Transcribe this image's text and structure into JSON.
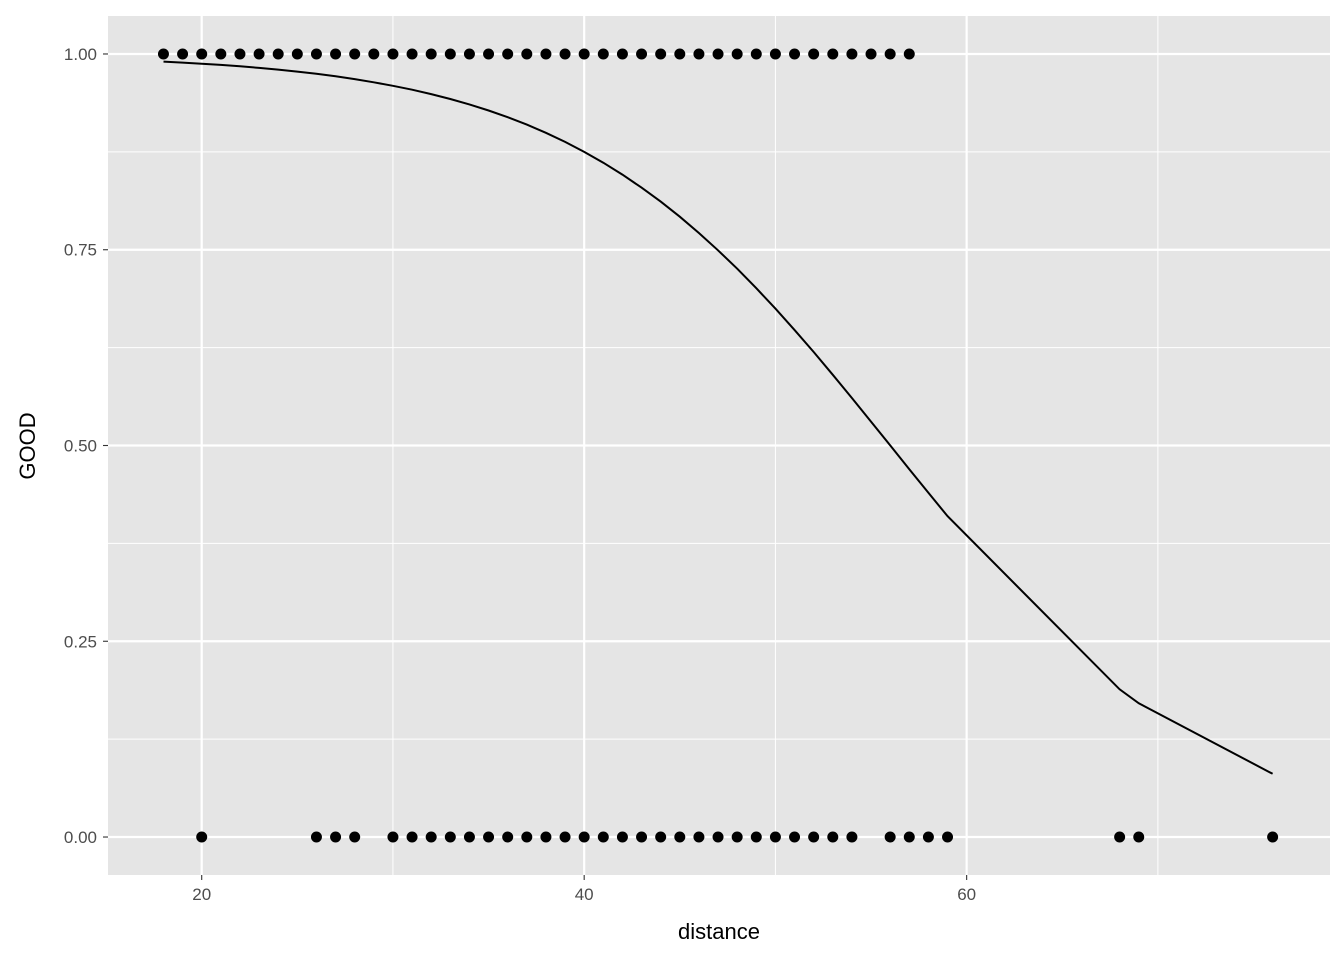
{
  "chart_data": {
    "type": "scatter",
    "xlabel": "distance",
    "ylabel": "GOOD",
    "xlim": [
      15.1,
      79.0
    ],
    "ylim": [
      -0.0485,
      1.0485
    ],
    "x_ticks": [
      20,
      40,
      60
    ],
    "x_tick_labels": [
      "20",
      "40",
      "60"
    ],
    "y_ticks": [
      0,
      0.25,
      0.5,
      0.75,
      1
    ],
    "y_tick_labels": [
      "0.00",
      "0.25",
      "0.50",
      "0.75",
      "1.00"
    ],
    "grid": true,
    "background": "#e5e5e5",
    "point_color": "#000000",
    "points_y1_x": [
      18,
      19,
      20,
      21,
      22,
      23,
      24,
      25,
      26,
      27,
      28,
      29,
      30,
      31,
      32,
      33,
      34,
      35,
      36,
      37,
      38,
      39,
      40,
      41,
      42,
      43,
      44,
      45,
      46,
      47,
      48,
      49,
      50,
      51,
      52,
      53,
      54,
      55,
      56,
      57
    ],
    "points_y0_x": [
      20,
      26,
      27,
      28,
      30,
      31,
      32,
      33,
      34,
      35,
      36,
      37,
      38,
      39,
      40,
      41,
      42,
      43,
      44,
      45,
      46,
      47,
      48,
      49,
      50,
      51,
      52,
      53,
      54,
      56,
      57,
      58,
      59,
      68,
      69,
      76
    ],
    "fit_line": {
      "model": "logistic",
      "intercept": 6.81,
      "slope": -0.1216,
      "x": [
        18,
        19,
        20,
        21,
        22,
        23,
        24,
        25,
        26,
        27,
        28,
        29,
        30,
        31,
        32,
        33,
        34,
        35,
        36,
        37,
        38,
        39,
        40,
        41,
        42,
        43,
        44,
        45,
        46,
        47,
        48,
        49,
        50,
        51,
        52,
        53,
        54,
        55,
        56,
        57,
        58,
        59,
        68,
        69,
        76
      ]
    }
  }
}
